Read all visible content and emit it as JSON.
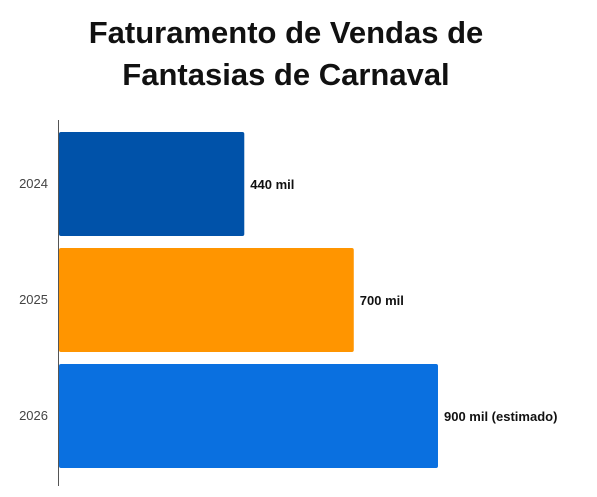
{
  "chart_data": {
    "type": "bar",
    "orientation": "horizontal",
    "title_lines": [
      "Faturamento de Vendas de",
      "Fantasias de Carnaval"
    ],
    "categories": [
      "2024",
      "2025",
      "2026"
    ],
    "values": [
      440,
      700,
      900
    ],
    "data_labels": [
      "440 mil",
      "700 mil",
      "900 mil (estimado)"
    ],
    "colors": [
      "#0052A9",
      "#FF9500",
      "#0A70E0"
    ],
    "xlim": [
      0,
      1270
    ],
    "grid": false,
    "legend": "none"
  }
}
